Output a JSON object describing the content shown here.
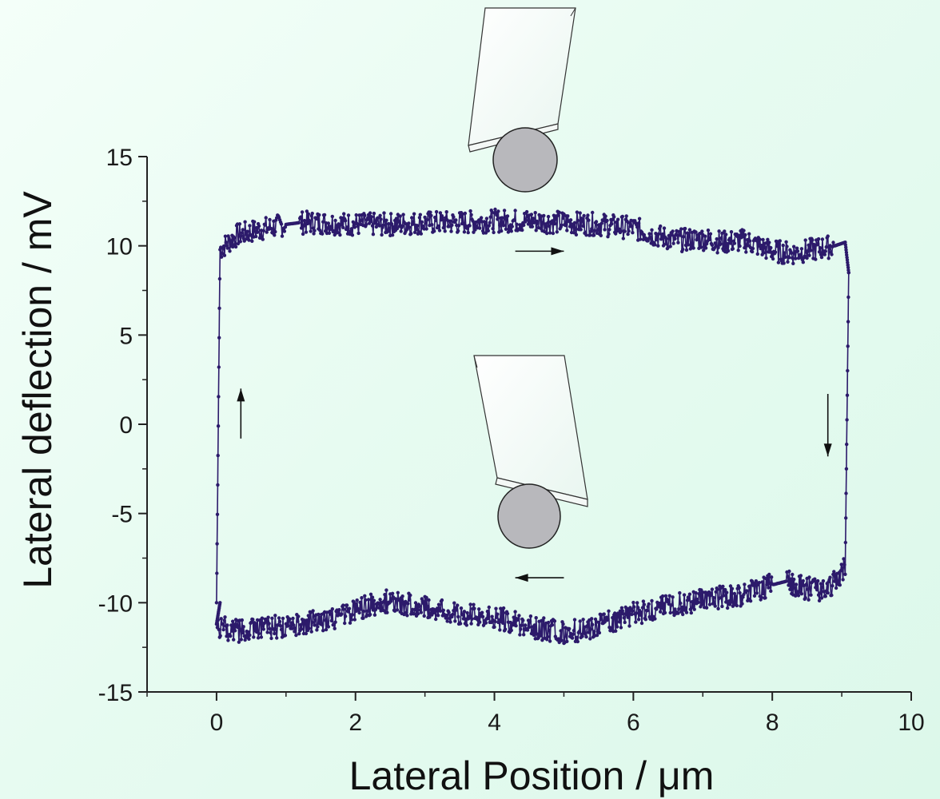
{
  "chart_data": {
    "type": "line",
    "title": "",
    "xlabel": "Lateral Position / μm",
    "ylabel": "Lateral deflection / mV",
    "xlim": [
      -1,
      10
    ],
    "ylim": [
      -15,
      15
    ],
    "x_ticks": [
      0,
      2,
      4,
      6,
      8,
      10
    ],
    "x_tick_labels": [
      "0",
      "2",
      "4",
      "6",
      "8",
      "10"
    ],
    "y_ticks": [
      -15,
      -10,
      -5,
      0,
      5,
      10,
      15
    ],
    "y_tick_labels": [
      "-15",
      "-10",
      "-5",
      "0",
      "5",
      "10",
      "15"
    ],
    "grid": false,
    "legend": "none",
    "series_color": "#2c1a6b",
    "series": [
      {
        "x": [
          0.0,
          0.05,
          0.3,
          0.6,
          1.0,
          1.2,
          1.5,
          2.0,
          2.5,
          3.0,
          3.5,
          4.0,
          4.5,
          5.0,
          5.5,
          6.0,
          6.3,
          6.6,
          7.0,
          7.3,
          7.6,
          8.0,
          8.3,
          8.6,
          8.9,
          9.05,
          9.1
        ],
        "y": [
          -10.0,
          9.8,
          10.6,
          10.9,
          11.2,
          11.3,
          11.3,
          11.2,
          11.2,
          11.3,
          11.3,
          11.4,
          11.4,
          11.3,
          11.2,
          11.0,
          10.6,
          10.3,
          10.4,
          10.2,
          10.3,
          9.7,
          9.6,
          9.8,
          10.0,
          10.2,
          8.5
        ]
      },
      {
        "x": [
          9.1,
          9.05,
          8.8,
          8.5,
          8.2,
          8.0,
          7.5,
          7.0,
          6.5,
          6.0,
          5.5,
          5.0,
          4.5,
          4.0,
          3.5,
          3.0,
          2.5,
          2.2,
          2.0,
          1.5,
          1.0,
          0.5,
          0.2,
          0.0,
          0.05
        ],
        "y": [
          8.5,
          -8.0,
          -9.3,
          -9.2,
          -8.8,
          -9.0,
          -9.6,
          -9.8,
          -10.2,
          -10.6,
          -11.3,
          -11.7,
          -11.3,
          -10.8,
          -10.7,
          -10.3,
          -9.9,
          -10.1,
          -10.5,
          -11.0,
          -11.3,
          -11.5,
          -11.6,
          -11.2,
          -10.0
        ]
      }
    ],
    "annotations": [
      {
        "type": "arrow",
        "x1": 4.3,
        "y1": 9.7,
        "x2": 5.0,
        "y2": 9.7,
        "direction": "right"
      },
      {
        "type": "arrow",
        "x1": 5.0,
        "y1": -8.6,
        "x2": 4.3,
        "y2": -8.6,
        "direction": "left"
      },
      {
        "type": "arrow",
        "x1": 0.35,
        "y1": -0.8,
        "x2": 0.35,
        "y2": 2.0,
        "direction": "up"
      },
      {
        "type": "arrow",
        "x1": 8.8,
        "y1": 1.7,
        "x2": 8.8,
        "y2": -1.8,
        "direction": "down"
      }
    ]
  }
}
